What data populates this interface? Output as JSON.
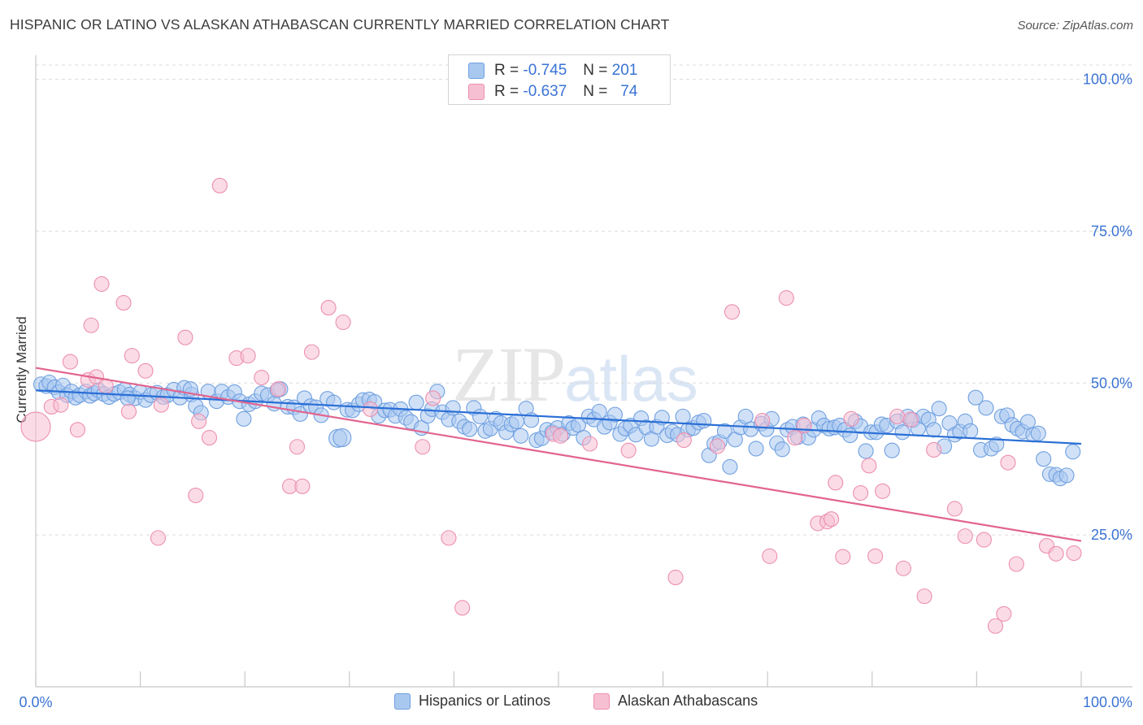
{
  "title": "HISPANIC OR LATINO VS ALASKAN ATHABASCAN CURRENTLY MARRIED CORRELATION CHART",
  "source": "Source: ZipAtlas.com",
  "watermark": {
    "part1": "ZIP",
    "part2": "atlas"
  },
  "legend_top": [
    {
      "r_label": "R =",
      "r_value": "-0.745",
      "n_label": "N =",
      "n_value": "201",
      "color": "#a9c8f0",
      "stroke": "#6f9fe0"
    },
    {
      "r_label": "R =",
      "r_value": "-0.637",
      "n_label": "N =",
      "n_value": "74",
      "color": "#f7c0d2",
      "stroke": "#ec8fb0"
    }
  ],
  "chart_data": {
    "type": "scatter",
    "title": "HISPANIC OR LATINO VS ALASKAN ATHABASCAN CURRENTLY MARRIED CORRELATION CHART",
    "xlabel": "",
    "ylabel": "Currently Married",
    "xlim": [
      0,
      100
    ],
    "ylim": [
      0,
      100
    ],
    "x_tick_labels": [
      "0.0%",
      "100.0%"
    ],
    "y_tick_labels": [
      "25.0%",
      "50.0%",
      "75.0%",
      "100.0%"
    ],
    "y_ticks": [
      25,
      50,
      75,
      100
    ],
    "grid": true,
    "legend_position": "bottom",
    "series": [
      {
        "name": "Hispanics or Latinos",
        "color": "#a9c8f0",
        "stroke": "#6f9fe0",
        "line_color": "#2a6fd6",
        "trend": [
          [
            0,
            48.8
          ],
          [
            100,
            40.0
          ]
        ],
        "points": [
          [
            0.5,
            49.8
          ],
          [
            1.0,
            49.5
          ],
          [
            1.3,
            50.1
          ],
          [
            1.8,
            49.3
          ],
          [
            2.2,
            48.5
          ],
          [
            2.6,
            49.6
          ],
          [
            3.0,
            48.0
          ],
          [
            3.4,
            48.6
          ],
          [
            3.8,
            47.6
          ],
          [
            4.2,
            48.0
          ],
          [
            4.8,
            48.6
          ],
          [
            5.2,
            47.9
          ],
          [
            5.6,
            48.3
          ],
          [
            6.0,
            48.8
          ],
          [
            6.5,
            48.2
          ],
          [
            7.0,
            47.7
          ],
          [
            7.5,
            48.2
          ],
          [
            8.0,
            48.5
          ],
          [
            8.5,
            48.9
          ],
          [
            9.0,
            48.1
          ],
          [
            9.5,
            47.5
          ],
          [
            10.0,
            48.5
          ],
          [
            10.5,
            47.2
          ],
          [
            11.0,
            48.0
          ],
          [
            11.6,
            48.4
          ],
          [
            12.2,
            47.7
          ],
          [
            12.6,
            48.0
          ],
          [
            13.2,
            48.9
          ],
          [
            13.8,
            47.6
          ],
          [
            14.2,
            49.2
          ],
          [
            14.9,
            48.1
          ],
          [
            15.3,
            46.2
          ],
          [
            15.8,
            45.1
          ],
          [
            16.5,
            48.6
          ],
          [
            17.3,
            47.0
          ],
          [
            17.8,
            48.6
          ],
          [
            18.4,
            47.7
          ],
          [
            19.0,
            48.5
          ],
          [
            19.5,
            47.0
          ],
          [
            19.9,
            44.1
          ],
          [
            20.4,
            46.5
          ],
          [
            21.0,
            47.0
          ],
          [
            21.6,
            48.3
          ],
          [
            22.2,
            48.0
          ],
          [
            22.8,
            46.6
          ],
          [
            23.4,
            49.0
          ],
          [
            24.1,
            46.1
          ],
          [
            24.7,
            46.0
          ],
          [
            25.3,
            44.9
          ],
          [
            25.7,
            47.5
          ],
          [
            26.3,
            46.2
          ],
          [
            26.8,
            46.0
          ],
          [
            27.3,
            44.7
          ],
          [
            27.9,
            47.4
          ],
          [
            28.5,
            46.8
          ],
          [
            28.9,
            40.9
          ],
          [
            29.3,
            41.0
          ],
          [
            29.8,
            45.6
          ],
          [
            30.3,
            45.5
          ],
          [
            30.9,
            46.5
          ],
          [
            31.3,
            47.2
          ],
          [
            31.9,
            47.3
          ],
          [
            32.4,
            46.9
          ],
          [
            32.8,
            44.6
          ],
          [
            33.4,
            45.5
          ],
          [
            33.9,
            45.6
          ],
          [
            34.4,
            44.6
          ],
          [
            34.9,
            45.7
          ],
          [
            35.4,
            44.3
          ],
          [
            35.9,
            43.6
          ],
          [
            36.4,
            46.8
          ],
          [
            36.9,
            42.6
          ],
          [
            37.5,
            44.6
          ],
          [
            37.9,
            45.7
          ],
          [
            38.4,
            48.6
          ],
          [
            38.9,
            45.2
          ],
          [
            39.5,
            44.0
          ],
          [
            39.9,
            45.9
          ],
          [
            40.5,
            43.7
          ],
          [
            41.0,
            42.8
          ],
          [
            41.5,
            42.4
          ],
          [
            41.9,
            45.9
          ],
          [
            42.5,
            44.5
          ],
          [
            43.0,
            42.1
          ],
          [
            43.5,
            42.5
          ],
          [
            44.0,
            44.1
          ],
          [
            44.5,
            43.4
          ],
          [
            45.0,
            41.9
          ],
          [
            45.5,
            43.2
          ],
          [
            46.0,
            43.7
          ],
          [
            46.4,
            41.3
          ],
          [
            46.9,
            45.8
          ],
          [
            47.4,
            43.9
          ],
          [
            47.9,
            40.6
          ],
          [
            48.4,
            40.9
          ],
          [
            48.9,
            42.3
          ],
          [
            49.4,
            41.9
          ],
          [
            49.9,
            42.6
          ],
          [
            50.4,
            41.6
          ],
          [
            51.0,
            43.4
          ],
          [
            51.4,
            42.6
          ],
          [
            51.9,
            43.1
          ],
          [
            52.4,
            41.0
          ],
          [
            52.9,
            44.5
          ],
          [
            53.4,
            44.0
          ],
          [
            53.9,
            45.3
          ],
          [
            54.4,
            42.8
          ],
          [
            54.9,
            43.5
          ],
          [
            55.4,
            44.8
          ],
          [
            55.9,
            41.6
          ],
          [
            56.4,
            42.5
          ],
          [
            56.9,
            43.0
          ],
          [
            57.4,
            41.5
          ],
          [
            57.9,
            44.2
          ],
          [
            58.4,
            42.7
          ],
          [
            58.9,
            40.8
          ],
          [
            59.4,
            42.8
          ],
          [
            59.9,
            44.3
          ],
          [
            60.4,
            41.4
          ],
          [
            60.9,
            42.0
          ],
          [
            61.4,
            41.5
          ],
          [
            61.9,
            44.5
          ],
          [
            62.4,
            42.3
          ],
          [
            62.9,
            42.6
          ],
          [
            63.4,
            43.5
          ],
          [
            63.9,
            43.8
          ],
          [
            64.4,
            38.1
          ],
          [
            64.9,
            40.0
          ],
          [
            65.4,
            40.3
          ],
          [
            65.9,
            42.1
          ],
          [
            66.4,
            36.2
          ],
          [
            66.9,
            40.7
          ],
          [
            67.4,
            42.7
          ],
          [
            67.9,
            44.5
          ],
          [
            68.4,
            42.4
          ],
          [
            68.9,
            39.2
          ],
          [
            69.4,
            43.3
          ],
          [
            69.9,
            42.4
          ],
          [
            70.4,
            44.1
          ],
          [
            70.9,
            40.1
          ],
          [
            71.4,
            39.1
          ],
          [
            71.9,
            42.3
          ],
          [
            72.4,
            42.8
          ],
          [
            72.9,
            41.1
          ],
          [
            73.4,
            43.2
          ],
          [
            73.9,
            41.0
          ],
          [
            74.4,
            42.3
          ],
          [
            74.9,
            44.2
          ],
          [
            75.4,
            43.0
          ],
          [
            75.9,
            42.5
          ],
          [
            76.4,
            42.7
          ],
          [
            76.9,
            43.0
          ],
          [
            77.4,
            42.3
          ],
          [
            77.9,
            41.4
          ],
          [
            78.4,
            43.7
          ],
          [
            78.9,
            42.9
          ],
          [
            79.4,
            38.8
          ],
          [
            79.9,
            41.9
          ],
          [
            80.4,
            41.9
          ],
          [
            80.9,
            43.2
          ],
          [
            81.4,
            43.0
          ],
          [
            81.9,
            38.9
          ],
          [
            82.4,
            43.7
          ],
          [
            82.9,
            41.9
          ],
          [
            83.4,
            44.5
          ],
          [
            83.9,
            43.9
          ],
          [
            84.4,
            42.5
          ],
          [
            84.9,
            44.5
          ],
          [
            85.4,
            44.0
          ],
          [
            85.9,
            42.3
          ],
          [
            86.4,
            45.8
          ],
          [
            86.9,
            39.6
          ],
          [
            87.4,
            43.4
          ],
          [
            87.9,
            41.5
          ],
          [
            88.4,
            42.0
          ],
          [
            88.9,
            43.7
          ],
          [
            89.4,
            42.1
          ],
          [
            89.9,
            47.6
          ],
          [
            90.4,
            39.0
          ],
          [
            90.9,
            45.9
          ],
          [
            91.4,
            39.2
          ],
          [
            91.9,
            39.9
          ],
          [
            92.4,
            44.5
          ],
          [
            92.9,
            44.7
          ],
          [
            93.4,
            43.1
          ],
          [
            93.9,
            42.5
          ],
          [
            94.4,
            42.0
          ],
          [
            94.9,
            43.6
          ],
          [
            95.4,
            41.5
          ],
          [
            95.9,
            41.7
          ],
          [
            96.4,
            37.5
          ],
          [
            97.0,
            35.0
          ],
          [
            97.6,
            34.9
          ],
          [
            98.0,
            34.3
          ],
          [
            98.6,
            34.8
          ],
          [
            99.2,
            38.7
          ],
          [
            14.8,
            49.0
          ],
          [
            23.1,
            48.8
          ],
          [
            8.8,
            47.5
          ]
        ]
      },
      {
        "name": "Alaskan Athabascans",
        "color": "#f7c0d2",
        "stroke": "#ec8fb0",
        "line_color": "#e2648f",
        "trend": [
          [
            0,
            52.5
          ],
          [
            100,
            24.0
          ]
        ],
        "points": [
          [
            0.0,
            42.8
          ],
          [
            1.5,
            46.1
          ],
          [
            2.4,
            46.4
          ],
          [
            3.3,
            53.5
          ],
          [
            4.0,
            42.3
          ],
          [
            5.0,
            50.5
          ],
          [
            5.3,
            59.5
          ],
          [
            5.8,
            51.0
          ],
          [
            6.3,
            66.3
          ],
          [
            6.7,
            49.5
          ],
          [
            8.4,
            63.2
          ],
          [
            8.9,
            45.3
          ],
          [
            9.2,
            54.5
          ],
          [
            10.5,
            52.0
          ],
          [
            11.7,
            24.5
          ],
          [
            12.0,
            46.4
          ],
          [
            14.3,
            57.5
          ],
          [
            15.3,
            31.5
          ],
          [
            15.6,
            43.7
          ],
          [
            16.6,
            41.0
          ],
          [
            17.6,
            82.5
          ],
          [
            19.2,
            54.1
          ],
          [
            20.3,
            54.5
          ],
          [
            21.6,
            50.9
          ],
          [
            23.2,
            49.0
          ],
          [
            24.3,
            33.0
          ],
          [
            25.5,
            33.0
          ],
          [
            25.0,
            39.5
          ],
          [
            26.4,
            55.1
          ],
          [
            28.0,
            62.4
          ],
          [
            29.4,
            60.0
          ],
          [
            32.0,
            45.7
          ],
          [
            37.0,
            39.5
          ],
          [
            38.0,
            47.5
          ],
          [
            39.5,
            24.5
          ],
          [
            40.8,
            13.0
          ],
          [
            49.5,
            41.6
          ],
          [
            50.2,
            41.3
          ],
          [
            53.0,
            40.0
          ],
          [
            56.7,
            38.9
          ],
          [
            61.2,
            18.0
          ],
          [
            62.0,
            40.6
          ],
          [
            65.2,
            39.6
          ],
          [
            66.6,
            61.7
          ],
          [
            69.5,
            43.8
          ],
          [
            70.2,
            21.5
          ],
          [
            71.8,
            64.0
          ],
          [
            72.6,
            41.0
          ],
          [
            73.5,
            43.0
          ],
          [
            74.8,
            26.9
          ],
          [
            75.7,
            27.2
          ],
          [
            76.1,
            27.6
          ],
          [
            77.2,
            21.4
          ],
          [
            78.0,
            44.1
          ],
          [
            78.9,
            31.9
          ],
          [
            79.7,
            36.4
          ],
          [
            80.3,
            21.5
          ],
          [
            81.0,
            32.2
          ],
          [
            82.4,
            44.5
          ],
          [
            83.0,
            19.5
          ],
          [
            83.7,
            44.0
          ],
          [
            85.0,
            14.9
          ],
          [
            85.9,
            39.0
          ],
          [
            87.9,
            29.3
          ],
          [
            88.9,
            24.8
          ],
          [
            90.7,
            24.2
          ],
          [
            91.8,
            10.0
          ],
          [
            92.6,
            12.0
          ],
          [
            93.0,
            36.9
          ],
          [
            93.8,
            20.2
          ],
          [
            96.7,
            23.2
          ],
          [
            97.6,
            21.9
          ],
          [
            99.3,
            22.0
          ],
          [
            76.5,
            33.6
          ]
        ]
      }
    ]
  }
}
